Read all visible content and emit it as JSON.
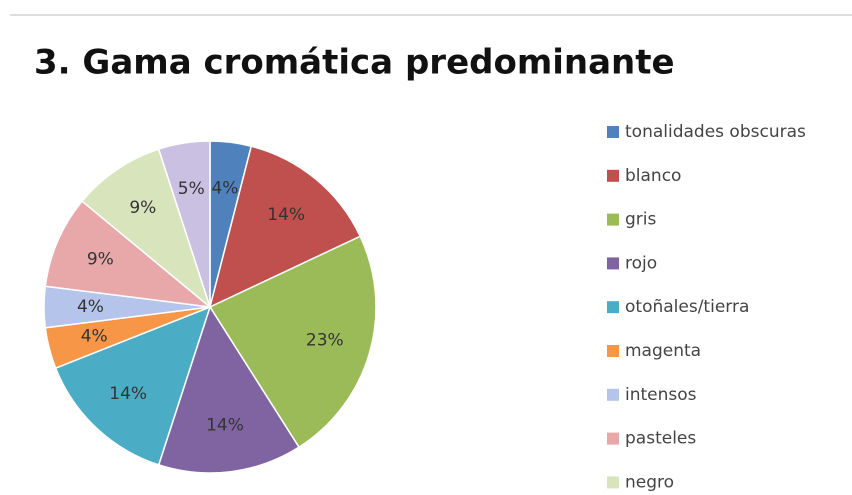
{
  "chart_data": {
    "type": "pie",
    "title": "3. Gama cromática predominante",
    "categories": [
      "tonalidades obscuras",
      "blanco",
      "gris",
      "rojo",
      "otoñales/tierra",
      "magenta",
      "intensos",
      "pasteles",
      "negro",
      null
    ],
    "values": [
      4,
      14,
      23,
      14,
      14,
      4,
      4,
      9,
      9,
      5
    ],
    "value_labels": [
      "4%",
      "14%",
      "23%",
      "14%",
      "14%",
      "4%",
      "4%",
      "9%",
      "9%",
      "5%"
    ],
    "colors": [
      "#4f81bd",
      "#c0504d",
      "#9bbb59",
      "#8064a2",
      "#4bacc6",
      "#f79646",
      "#b4c4ea",
      "#e8a8aa",
      "#d8e4bc",
      "#c9c0e2"
    ],
    "legend": "right"
  }
}
